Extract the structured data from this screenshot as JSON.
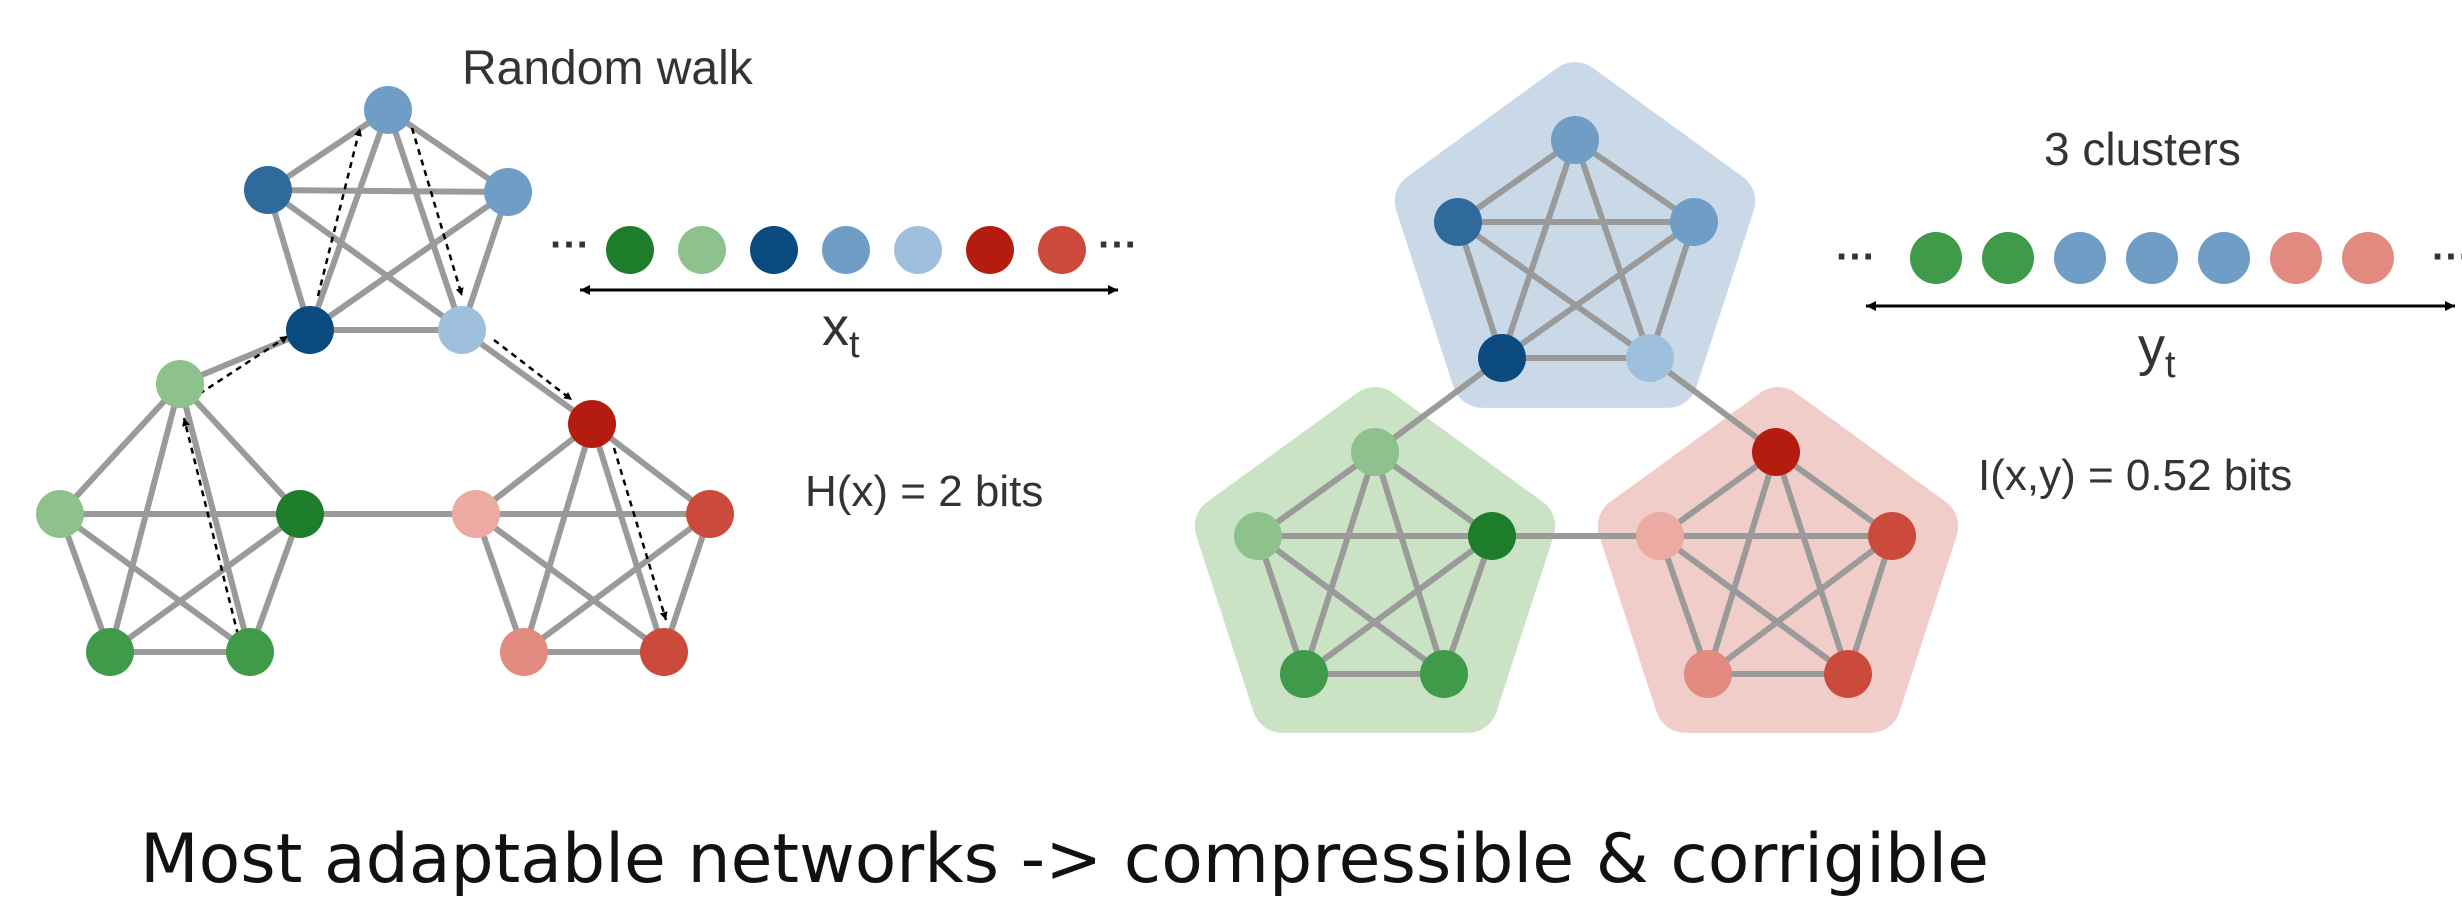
{
  "left": {
    "title": "Random walk",
    "sequence_label": "x",
    "sequence_sub": "t",
    "entropy": "H(x) = 2 bits",
    "ellipsis": "···"
  },
  "right": {
    "title": "3 clusters",
    "sequence_label": "y",
    "sequence_sub": "t",
    "mutual_info": "I(x,y) = 0.52 bits",
    "ellipsis": "···"
  },
  "caption": "Most adaptable networks -> compressible & corrigible",
  "colors": {
    "edge": "#9a9a9a",
    "blue_dark": "#0b4a7e",
    "blue_mid": "#2e6a9c",
    "blue_light": "#6f9dc6",
    "blue_pale": "#9ec0dc",
    "green_dark": "#1e7d2b",
    "green_mid": "#3f9a4a",
    "green_light": "#8dc28d",
    "red_dark": "#b51c10",
    "red_mid": "#cc4a3c",
    "red_light": "#e28a80",
    "red_pale": "#ecaaa3",
    "cluster_blue_bg": "#c9d9e8",
    "cluster_green_bg": "#c9e3c4",
    "cluster_red_bg": "#f1cdc9"
  }
}
